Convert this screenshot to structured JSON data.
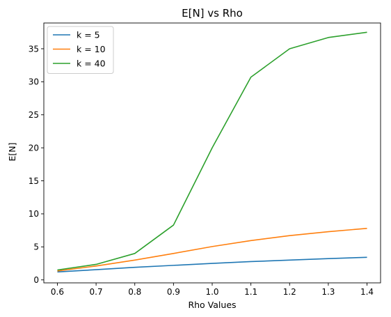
{
  "chart_data": {
    "type": "line",
    "title": "E[N] vs Rho",
    "xlabel": "Rho Values",
    "ylabel": "E[N]",
    "x": [
      0.6,
      0.7,
      0.8,
      0.9,
      1.0,
      1.1,
      1.2,
      1.3,
      1.4
    ],
    "xlim": [
      0.565,
      1.435
    ],
    "ylim": [
      -0.45,
      38.9
    ],
    "xticks": [
      "0.6",
      "0.7",
      "0.8",
      "0.9",
      "1.0",
      "1.1",
      "1.2",
      "1.3",
      "1.4"
    ],
    "yticks": [
      "0",
      "5",
      "10",
      "15",
      "20",
      "25",
      "30",
      "35"
    ],
    "grid": false,
    "legend_position": "top-left",
    "series": [
      {
        "name": "k = 5",
        "color": "#1f77b4",
        "values": [
          1.2,
          1.55,
          1.9,
          2.2,
          2.5,
          2.77,
          3.0,
          3.22,
          3.42
        ]
      },
      {
        "name": "k = 10",
        "color": "#ff7f0e",
        "values": [
          1.35,
          2.1,
          3.0,
          4.0,
          5.05,
          5.95,
          6.7,
          7.3,
          7.8
        ]
      },
      {
        "name": "k = 40",
        "color": "#2ca02c",
        "values": [
          1.5,
          2.35,
          4.0,
          8.3,
          20.0,
          30.7,
          35.0,
          36.7,
          37.5
        ]
      }
    ]
  }
}
